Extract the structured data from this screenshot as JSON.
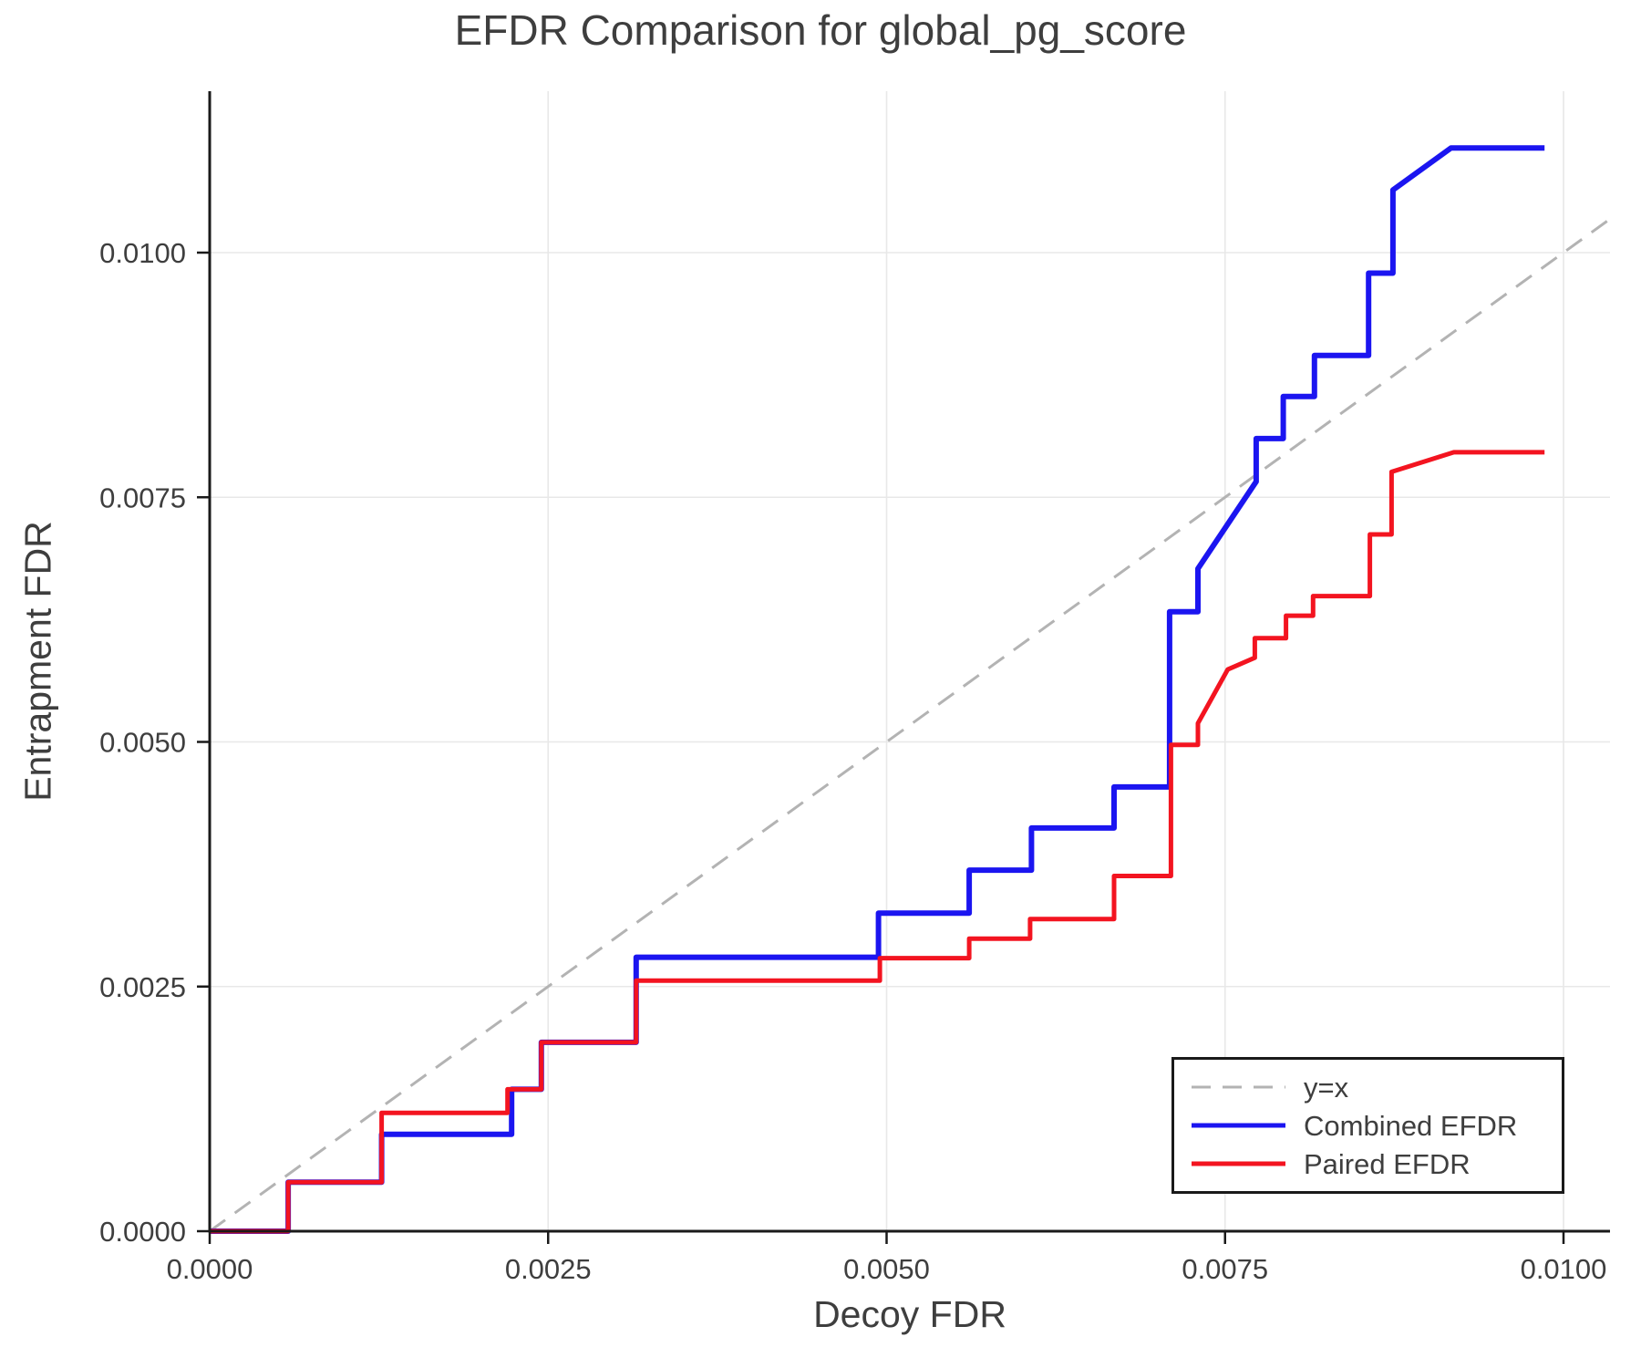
{
  "title": "EFDR Comparison for global_pg_score",
  "colors": {
    "combined": "#1b15f0",
    "paired": "#f31420",
    "identity": "#b3b3b3",
    "grid": "#e8e8e8",
    "spine": "#1a1a1a",
    "text": "#3e3e3e"
  },
  "chart_data": {
    "type": "line",
    "title": "EFDR Comparison for global_pg_score",
    "xlabel": "Decoy FDR",
    "ylabel": "Entrapment FDR",
    "xlim": [
      0,
      0.01035
    ],
    "ylim": [
      0,
      0.01162
    ],
    "grid": true,
    "legend_position": "lower right",
    "xticks": [
      0,
      0.0025,
      0.005,
      0.0075,
      0.01
    ],
    "xtick_labels": [
      "0.0000",
      "0.0025",
      "0.0050",
      "0.0075",
      "0.0100"
    ],
    "yticks": [
      0,
      0.0025,
      0.005,
      0.0075,
      0.01
    ],
    "ytick_labels": [
      "0.0000",
      "0.0025",
      "0.0050",
      "0.0075",
      "0.0100"
    ],
    "series": [
      {
        "name": "y=x",
        "style": "dashed",
        "color": "#b3b3b3",
        "width": 3,
        "points": [
          [
            0,
            0
          ],
          [
            0.01035,
            0.01035
          ]
        ]
      },
      {
        "name": "Combined EFDR",
        "style": "solid",
        "color": "#1b15f0",
        "width": 6,
        "points": [
          [
            0,
            0
          ],
          [
            0.00058,
            0
          ],
          [
            0.00058,
            0.0005
          ],
          [
            0.00127,
            0.0005
          ],
          [
            0.00127,
            0.00099
          ],
          [
            0.00223,
            0.00099
          ],
          [
            0.00223,
            0.00145
          ],
          [
            0.00245,
            0.00145
          ],
          [
            0.00245,
            0.00193
          ],
          [
            0.00315,
            0.00193
          ],
          [
            0.00315,
            0.0028
          ],
          [
            0.00494,
            0.0028
          ],
          [
            0.00494,
            0.00325
          ],
          [
            0.00561,
            0.00325
          ],
          [
            0.00561,
            0.00369
          ],
          [
            0.00607,
            0.00369
          ],
          [
            0.00607,
            0.00412
          ],
          [
            0.00668,
            0.00412
          ],
          [
            0.00668,
            0.00454
          ],
          [
            0.00709,
            0.00454
          ],
          [
            0.00709,
            0.00633
          ],
          [
            0.0073,
            0.00633
          ],
          [
            0.0073,
            0.00677
          ],
          [
            0.00773,
            0.00766
          ],
          [
            0.00773,
            0.0081
          ],
          [
            0.00793,
            0.0081
          ],
          [
            0.00793,
            0.00853
          ],
          [
            0.00816,
            0.00853
          ],
          [
            0.00816,
            0.00895
          ],
          [
            0.00856,
            0.00895
          ],
          [
            0.00856,
            0.00979
          ],
          [
            0.00874,
            0.00979
          ],
          [
            0.00874,
            0.01064
          ],
          [
            0.00917,
            0.01107
          ],
          [
            0.00986,
            0.01107
          ]
        ]
      },
      {
        "name": "Paired EFDR",
        "style": "solid",
        "color": "#f31420",
        "width": 5,
        "points": [
          [
            0,
            0
          ],
          [
            0.00058,
            0
          ],
          [
            0.00058,
            0.0005
          ],
          [
            0.00127,
            0.0005
          ],
          [
            0.00127,
            0.00121
          ],
          [
            0.0022,
            0.00121
          ],
          [
            0.0022,
            0.00145
          ],
          [
            0.00245,
            0.00145
          ],
          [
            0.00245,
            0.00193
          ],
          [
            0.00315,
            0.00193
          ],
          [
            0.00315,
            0.00256
          ],
          [
            0.00495,
            0.00256
          ],
          [
            0.00495,
            0.00279
          ],
          [
            0.00561,
            0.00279
          ],
          [
            0.00561,
            0.00299
          ],
          [
            0.00606,
            0.00299
          ],
          [
            0.00606,
            0.00319
          ],
          [
            0.00668,
            0.00319
          ],
          [
            0.00668,
            0.00363
          ],
          [
            0.0071,
            0.00363
          ],
          [
            0.0071,
            0.00497
          ],
          [
            0.0073,
            0.00497
          ],
          [
            0.0073,
            0.00519
          ],
          [
            0.00752,
            0.00574
          ],
          [
            0.00772,
            0.00586
          ],
          [
            0.00772,
            0.00606
          ],
          [
            0.00795,
            0.00606
          ],
          [
            0.00795,
            0.00629
          ],
          [
            0.00815,
            0.00629
          ],
          [
            0.00815,
            0.00649
          ],
          [
            0.00857,
            0.00649
          ],
          [
            0.00857,
            0.00712
          ],
          [
            0.00873,
            0.00712
          ],
          [
            0.00873,
            0.00776
          ],
          [
            0.00919,
            0.00796
          ],
          [
            0.00986,
            0.00796
          ]
        ]
      }
    ]
  }
}
